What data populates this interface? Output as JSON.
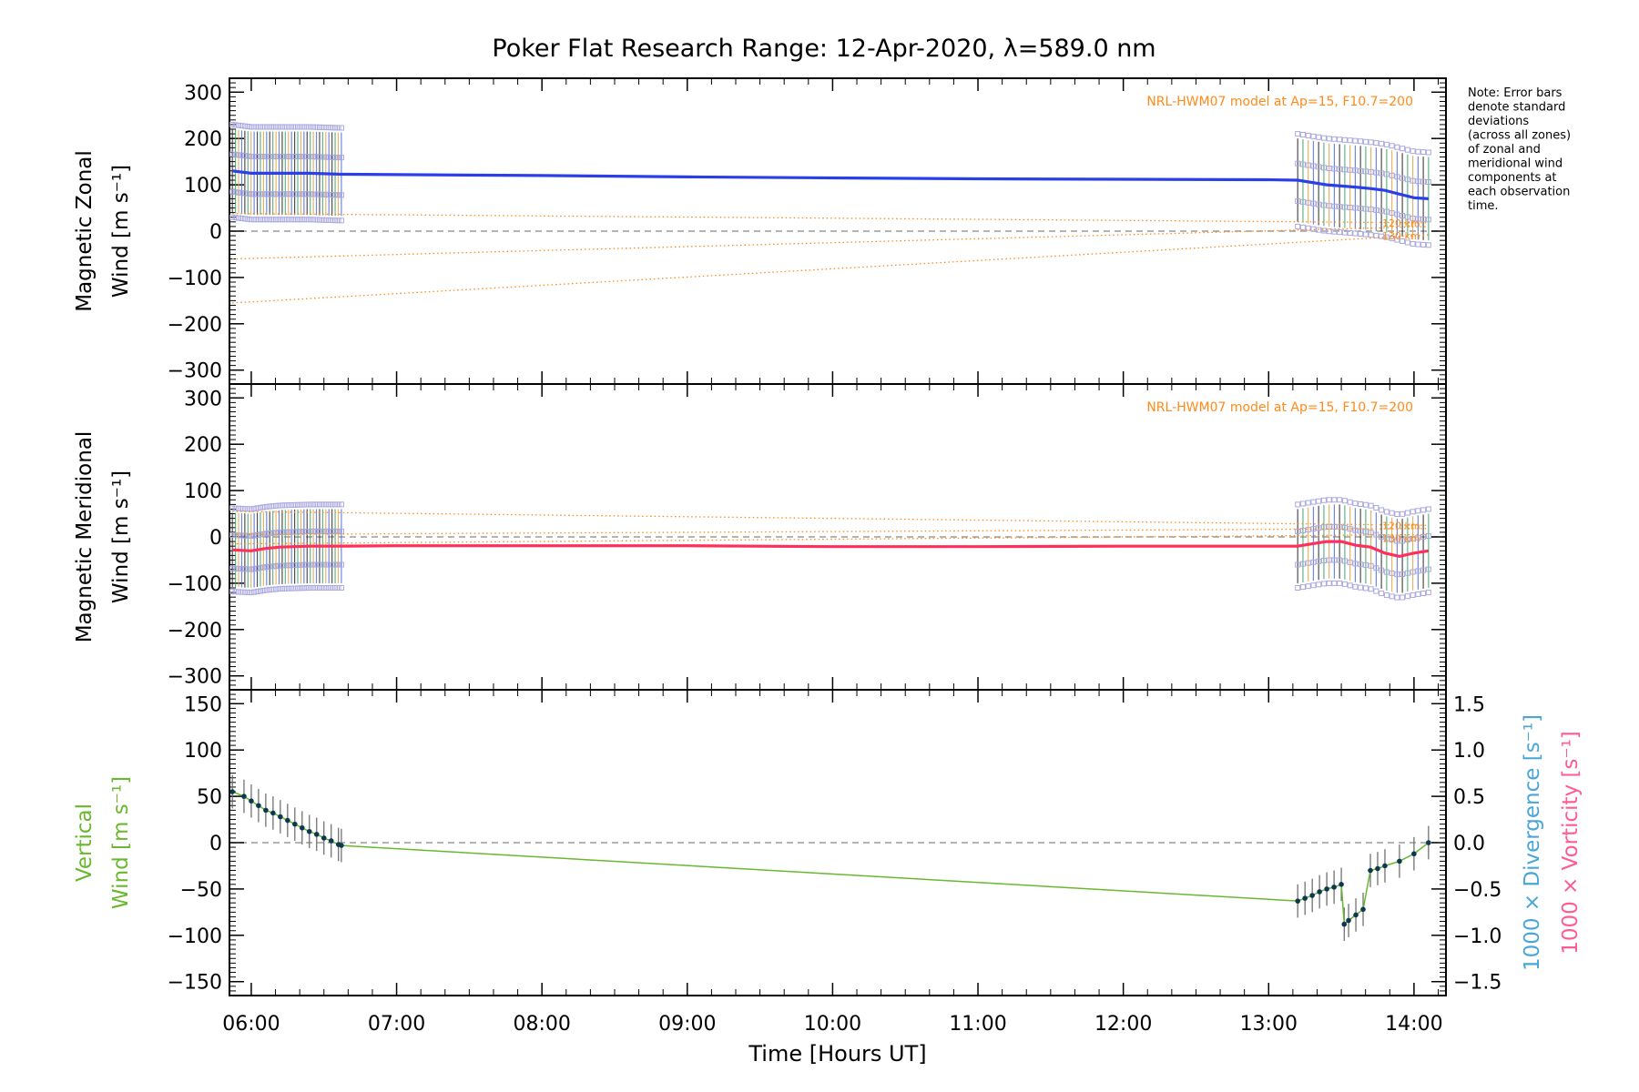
{
  "title": "Poker Flat Research Range: 12-Apr-2020, λ=589.0 nm",
  "note": [
    "Note: Error bars",
    "denote standard",
    "deviations",
    "(across all zones)",
    "of zonal and",
    "meridional wind",
    "components at",
    "each observation",
    "time."
  ],
  "xlabel": "Time [Hours UT]",
  "xticks": [
    "06:00",
    "07:00",
    "08:00",
    "09:00",
    "10:00",
    "11:00",
    "12:00",
    "13:00",
    "14:00"
  ],
  "model_label": "NRL-HWM07 model at Ap=15, F10.7=200",
  "altitude_labels": [
    "120 km",
    "130 km"
  ],
  "colors": {
    "zonal": "#2b3fe8",
    "meridional": "#ff2e5a",
    "vertical": "#6ab82e",
    "model": "#ff8a1a",
    "divergence": "#4aa6d8",
    "vorticity": "#ff5a92",
    "zones": "#aaa8e0",
    "dashed": "#888888"
  },
  "chart_data": [
    {
      "type": "line",
      "panel": "zonal",
      "ylabel_lines": [
        "Magnetic Zonal",
        "Wind [m s⁻¹]"
      ],
      "ylim": [
        -330,
        330
      ],
      "yticks": [
        "300",
        "200",
        "100",
        "0",
        "−100",
        "−200",
        "−300"
      ],
      "yvals": [
        300,
        200,
        100,
        0,
        -100,
        -200,
        -300
      ],
      "xlim": [
        5.85,
        14.22
      ],
      "series": [
        {
          "x": [
            5.87,
            6.0,
            6.2,
            6.4,
            6.6,
            7.0,
            8.0,
            9.0,
            10.0,
            11.0,
            12.0,
            13.0,
            13.2,
            13.4,
            13.6,
            13.7,
            13.8,
            13.9,
            14.0,
            14.1
          ],
          "y": [
            130,
            125,
            125,
            125,
            123,
            122,
            120,
            117,
            115,
            113,
            112,
            111,
            110,
            100,
            95,
            92,
            88,
            80,
            72,
            70
          ]
        }
      ],
      "model": [
        {
          "x": [
            5.87,
            14.1
          ],
          "y": [
            38,
            18
          ]
        },
        {
          "x": [
            5.87,
            14.1
          ],
          "y": [
            -60,
            10
          ]
        },
        {
          "x": [
            5.87,
            14.1
          ],
          "y": [
            -155,
            -8
          ]
        }
      ],
      "annotations": [
        "NRL-HWM07 model at Ap=15, F10.7=200",
        "120 km",
        "130 km"
      ]
    },
    {
      "type": "line",
      "panel": "meridional",
      "ylabel_lines": [
        "Magnetic Meridional",
        "Wind [m s⁻¹]"
      ],
      "ylim": [
        -330,
        330
      ],
      "yticks": [
        "300",
        "200",
        "100",
        "0",
        "−100",
        "−200",
        "−300"
      ],
      "yvals": [
        300,
        200,
        100,
        0,
        -100,
        -200,
        -300
      ],
      "xlim": [
        5.85,
        14.22
      ],
      "series": [
        {
          "x": [
            5.87,
            6.0,
            6.1,
            6.2,
            6.4,
            6.6,
            7.0,
            8.0,
            9.0,
            10.0,
            11.0,
            12.0,
            13.0,
            13.2,
            13.3,
            13.4,
            13.5,
            13.6,
            13.7,
            13.8,
            13.9,
            14.0,
            14.1
          ],
          "y": [
            -28,
            -30,
            -25,
            -22,
            -20,
            -20,
            -19,
            -19,
            -19,
            -21,
            -21,
            -20,
            -20,
            -20,
            -15,
            -10,
            -10,
            -18,
            -22,
            -35,
            -42,
            -35,
            -30
          ]
        }
      ],
      "model": [
        {
          "x": [
            5.87,
            14.1
          ],
          "y": [
            55,
            25
          ]
        },
        {
          "x": [
            5.87,
            14.1
          ],
          "y": [
            5,
            18
          ]
        },
        {
          "x": [
            5.87,
            14.1
          ],
          "y": [
            -15,
            5
          ]
        }
      ],
      "annotations": [
        "NRL-HWM07 model at Ap=15, F10.7=200",
        "120 km",
        "130 km"
      ]
    },
    {
      "type": "line",
      "panel": "vertical",
      "ylabel_lines": [
        "Vertical",
        "Wind [m s⁻¹]"
      ],
      "ylim": [
        -165,
        165
      ],
      "yticks": [
        "150",
        "100",
        "50",
        "0",
        "−50",
        "−100",
        "−150"
      ],
      "yvals": [
        150,
        100,
        50,
        0,
        -50,
        -100,
        -150
      ],
      "y2lim": [
        -1.65,
        1.65
      ],
      "y2ticks": [
        "1.5",
        "1.0",
        "0.5",
        "0.0",
        "−0.5",
        "−1.0",
        "−1.5"
      ],
      "y2vals": [
        1.5,
        1.0,
        0.5,
        0.0,
        -0.5,
        -1.0,
        -1.5
      ],
      "y2labels": [
        "1000 × Divergence [s⁻¹]",
        "1000 × Vorticity [s⁻¹]"
      ],
      "xlim": [
        5.85,
        14.22
      ],
      "series": [
        {
          "x": [
            5.87,
            5.95,
            6.0,
            6.05,
            6.1,
            6.15,
            6.2,
            6.25,
            6.3,
            6.35,
            6.4,
            6.45,
            6.5,
            6.55,
            6.6,
            6.62,
            13.2,
            13.25,
            13.3,
            13.35,
            13.4,
            13.45,
            13.5,
            13.52,
            13.55,
            13.6,
            13.65,
            13.7,
            13.75,
            13.8,
            13.9,
            14.0,
            14.1
          ],
          "y": [
            55,
            50,
            45,
            40,
            35,
            32,
            28,
            24,
            20,
            16,
            12,
            9,
            5,
            2,
            -2,
            -3,
            -63,
            -60,
            -57,
            -53,
            -50,
            -48,
            -45,
            -88,
            -84,
            -78,
            -72,
            -30,
            -28,
            -25,
            -20,
            -12,
            0
          ]
        }
      ],
      "annotations": []
    }
  ]
}
